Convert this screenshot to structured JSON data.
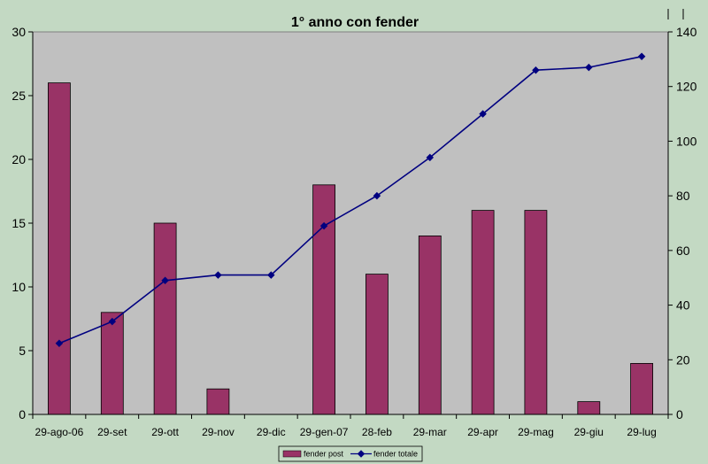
{
  "chart_data": {
    "type": "bar+line",
    "title": "1° anno con fender",
    "categories": [
      "29-ago-06",
      "29-set",
      "29-ott",
      "29-nov",
      "29-dic",
      "29-gen-07",
      "28-feb",
      "29-mar",
      "29-apr",
      "29-mag",
      "29-giu",
      "29-lug"
    ],
    "series": [
      {
        "name": "fender post",
        "type": "bar",
        "axis": "left",
        "color": "#993366",
        "values": [
          26,
          8,
          15,
          2,
          0,
          18,
          11,
          14,
          16,
          16,
          1,
          4
        ]
      },
      {
        "name": "fender totale",
        "type": "line",
        "axis": "right",
        "color": "#000080",
        "values": [
          26,
          34,
          49,
          51,
          51,
          69,
          80,
          94,
          110,
          126,
          127,
          131
        ]
      }
    ],
    "y_left": {
      "min": 0,
      "max": 30,
      "ticks": [
        0,
        5,
        10,
        15,
        20,
        25,
        30
      ]
    },
    "y_right": {
      "min": 0,
      "max": 140,
      "ticks": [
        0,
        20,
        40,
        60,
        80,
        100,
        120,
        140
      ]
    },
    "plot_background": "#c0c0c0",
    "page_background": "#c3d9c3",
    "grid": false,
    "legend": "bottom-center"
  }
}
